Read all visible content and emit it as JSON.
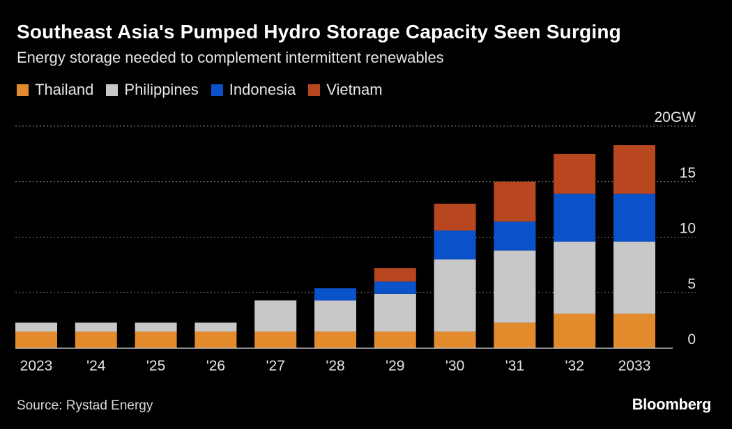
{
  "chart_data": {
    "type": "bar",
    "stacked": true,
    "title": "Southeast Asia's Pumped Hydro Storage Capacity Seen Surging",
    "subtitle": "Energy storage needed to complement intermittent renewables",
    "categories": [
      "2023",
      "'24",
      "'25",
      "'26",
      "'27",
      "'28",
      "'29",
      "'30",
      "'31",
      "'32",
      "2033"
    ],
    "series": [
      {
        "name": "Thailand",
        "color": "#e38b2c",
        "values": [
          1.5,
          1.5,
          1.5,
          1.5,
          1.5,
          1.5,
          1.5,
          1.5,
          2.3,
          3.1,
          3.1
        ]
      },
      {
        "name": "Philippines",
        "color": "#c8c8c8",
        "values": [
          0.8,
          0.8,
          0.8,
          0.8,
          2.8,
          2.8,
          3.4,
          6.5,
          6.5,
          6.5,
          6.5
        ]
      },
      {
        "name": "Indonesia",
        "color": "#0a52c9",
        "values": [
          0,
          0,
          0,
          0,
          0,
          1.1,
          1.1,
          2.6,
          2.6,
          4.3,
          4.3
        ]
      },
      {
        "name": "Vietnam",
        "color": "#b8461f",
        "values": [
          0,
          0,
          0,
          0,
          0,
          0,
          1.2,
          2.4,
          3.6,
          3.6,
          4.4
        ]
      }
    ],
    "ylim": [
      0,
      20
    ],
    "yticks": [
      0,
      5,
      10,
      15,
      20
    ],
    "ytick_labels": [
      "0",
      "5",
      "10",
      "15",
      "20GW"
    ],
    "xlabel": "",
    "ylabel": "",
    "grid": true,
    "legend_position": "top-left"
  },
  "source": "Source: Rystad Energy",
  "brand": "Bloomberg"
}
